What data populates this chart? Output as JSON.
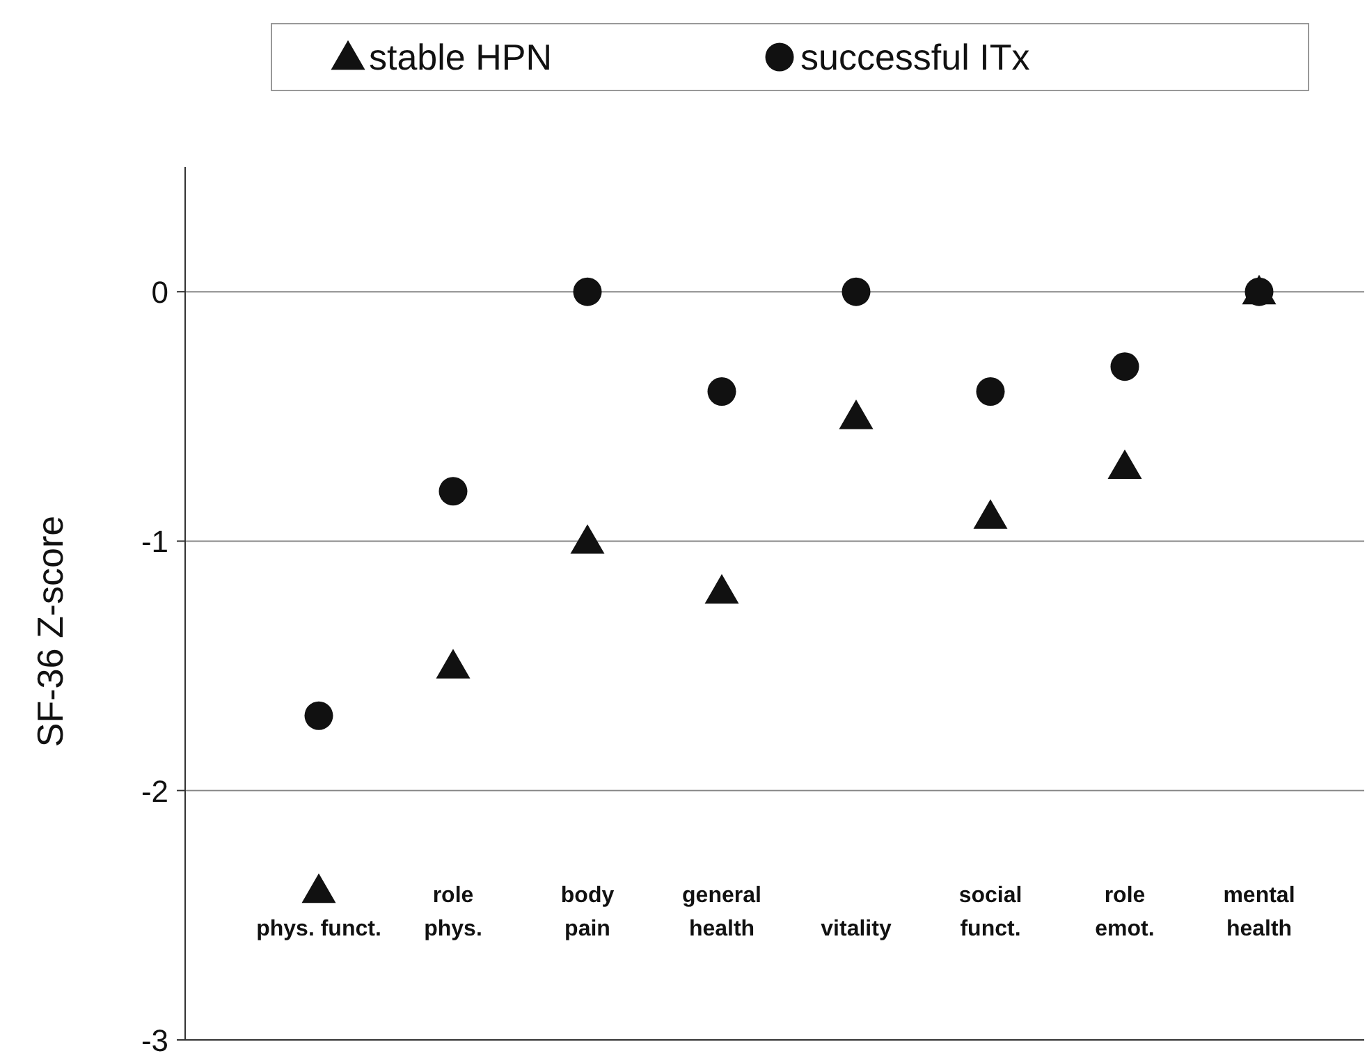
{
  "chart_data": {
    "type": "scatter",
    "ylabel": "SF-36 Z-score",
    "categories": [
      "phys. funct.",
      "role\nphys.",
      "body\npain",
      "general\nhealth",
      "vitality",
      "social\nfunct.",
      "role\nemot.",
      "mental\nhealth"
    ],
    "series": [
      {
        "name": "stable HPN",
        "color": "#111111",
        "marker": "triangle",
        "values": [
          -2.4,
          -1.5,
          -1.0,
          -1.2,
          -0.5,
          -0.9,
          -0.7,
          0
        ]
      },
      {
        "name": "successful ITx",
        "color": "#111111",
        "marker": "circle",
        "values": [
          -1.7,
          -0.8,
          0,
          -0.4,
          0,
          -0.4,
          -0.3,
          0
        ]
      }
    ],
    "ylim": [
      -3,
      0.5
    ],
    "yticks": [
      -3,
      -2,
      -1,
      0
    ],
    "grid": "y",
    "legend": "top"
  }
}
